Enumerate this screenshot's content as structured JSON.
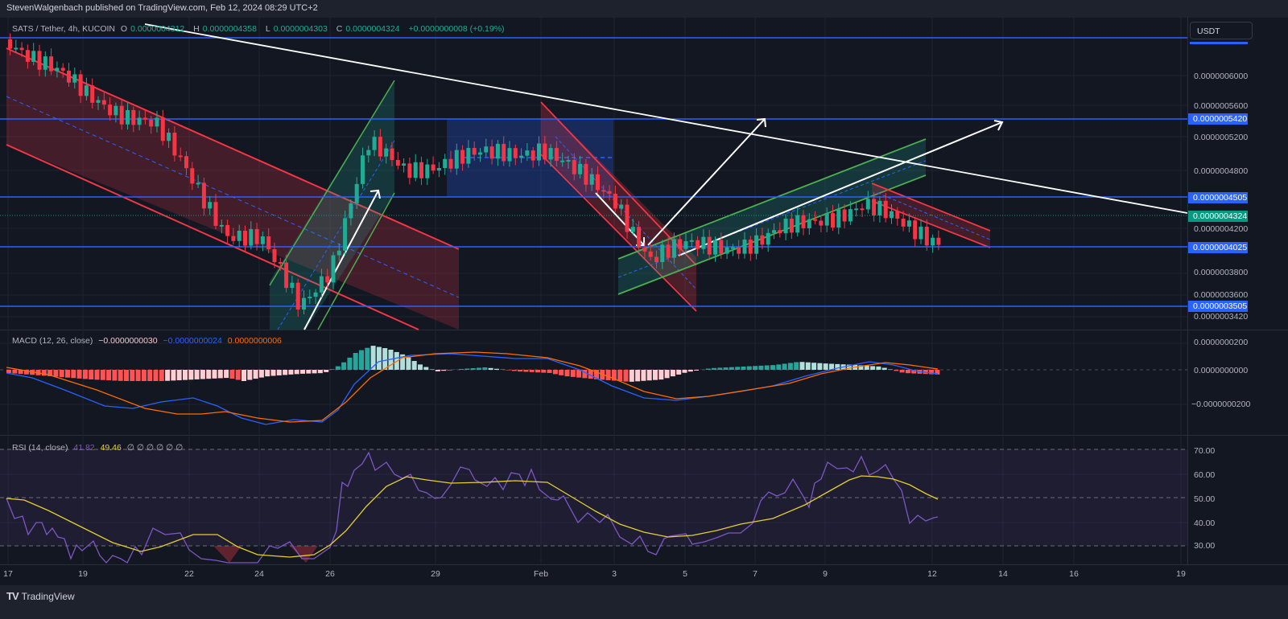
{
  "header": {
    "publisher_line": "StevenWalgenbach published on TradingView.com, Feb 12, 2024 08:29 UTC+2"
  },
  "symbol": {
    "title": "SATS / Tether, 4h, KUCOIN",
    "open_label": "O",
    "open": "0.0000004312",
    "high_label": "H",
    "high": "0.0000004358",
    "low_label": "L",
    "low": "0.0000004303",
    "close_label": "C",
    "close": "0.0000004324",
    "change": "+0.0000000008 (+0.19%)"
  },
  "currency_button": "USDT",
  "price_axis": {
    "ticks": [
      "0.0000006000",
      "0.0000005600",
      "0.0000005200",
      "0.0000004800",
      "0.0000004200",
      "0.0000003800",
      "0.0000003600",
      "0.0000003420"
    ],
    "tags": [
      {
        "value": "0.0000005420",
        "color": "#2962ff"
      },
      {
        "value": "0.0000004505",
        "color": "#2962ff"
      },
      {
        "value": "0.0000004324",
        "color": "#089981"
      },
      {
        "value": "0.0000004025",
        "color": "#2962ff"
      },
      {
        "value": "0.0000003505",
        "color": "#2962ff"
      }
    ]
  },
  "macd": {
    "title": "MACD (12, 26, close)",
    "histogram": "−0.0000000030",
    "macd_line": "−0.0000000024",
    "signal": "0.0000000006",
    "axis": [
      "0.0000000200",
      "0.0000000000",
      "−0.0000000200"
    ]
  },
  "rsi": {
    "title": "RSI (14, close)",
    "value": "41.82",
    "ma": "49.46",
    "extra": "∅ ∅ ∅ ∅ ∅ ∅",
    "axis": [
      "70.00",
      "60.00",
      "50.00",
      "40.00",
      "30.00"
    ]
  },
  "time_axis": [
    "17",
    "19",
    "22",
    "24",
    "26",
    "29",
    "Feb",
    "3",
    "5",
    "7",
    "9",
    "12",
    "14",
    "16",
    "19"
  ],
  "footer": {
    "brand": "TradingView",
    "logo": "TV"
  },
  "colors": {
    "up": "#22ab94",
    "down": "#f23645",
    "hline": "#2962ff",
    "macd": "#2962ff",
    "signal": "#ff6d00",
    "rsi": "#7e57c2",
    "rsi_ma": "#e5cf31",
    "trend": "#ffffff"
  },
  "chart_data": [
    {
      "type": "candlestick",
      "title": "SATS / Tether, 4h, KUCOIN",
      "ylabel": "USDT",
      "ylim": [
        3.4e-07,
        6.5e-07
      ],
      "x_ticks": [
        "17",
        "19",
        "22",
        "24",
        "26",
        "29",
        "Feb",
        "3",
        "5",
        "7",
        "9",
        "12",
        "14",
        "16",
        "19"
      ],
      "last_close": 4.324e-07,
      "horizontal_levels": [
        5.42e-07,
        4.505e-07,
        4.025e-07,
        3.505e-07
      ],
      "approx_close_path": {
        "x": [
          "Jan17",
          "Jan19",
          "Jan21",
          "Jan23",
          "Jan24",
          "Jan25",
          "Jan26",
          "Jan27",
          "Jan28",
          "Jan30",
          "Feb1",
          "Feb2",
          "Feb3",
          "Feb4",
          "Feb5",
          "Feb7",
          "Feb9",
          "Feb10",
          "Feb11",
          "Feb12"
        ],
        "values": [
          6.22e-07,
          5.7e-07,
          5.4e-07,
          4.4e-07,
          4.3e-07,
          3.7e-07,
          4.1e-07,
          5.2e-07,
          5e-07,
          5.1e-07,
          5.2e-07,
          4.9e-07,
          4.7e-07,
          4.15e-07,
          4.25e-07,
          4.3e-07,
          4.55e-07,
          4.65e-07,
          4.45e-07,
          4.324e-07
        ]
      },
      "annotations": [
        "descending red channel Jan17-Jan27",
        "ascending green channel Jan25-Jan28",
        "blue range box Jan29-Feb3",
        "descending red channel Feb1-Feb5",
        "ascending green channel Feb4-Feb11",
        "descending red channel Feb10-Feb14",
        "white descending trendline",
        "white projection arrows"
      ]
    },
    {
      "type": "line",
      "title": "MACD (12, 26, close)",
      "series": [
        {
          "name": "MACD",
          "last": -2.4e-09
        },
        {
          "name": "Signal",
          "last": 6e-10
        },
        {
          "name": "Histogram",
          "last": -3e-09
        }
      ],
      "ylim": [
        -3e-08,
        2.5e-08
      ]
    },
    {
      "type": "line",
      "title": "RSI (14, close)",
      "series": [
        {
          "name": "RSI",
          "last": 41.82
        },
        {
          "name": "RSI MA",
          "last": 49.46
        }
      ],
      "ylim": [
        28,
        72
      ],
      "bands": [
        30,
        50,
        70
      ]
    }
  ]
}
